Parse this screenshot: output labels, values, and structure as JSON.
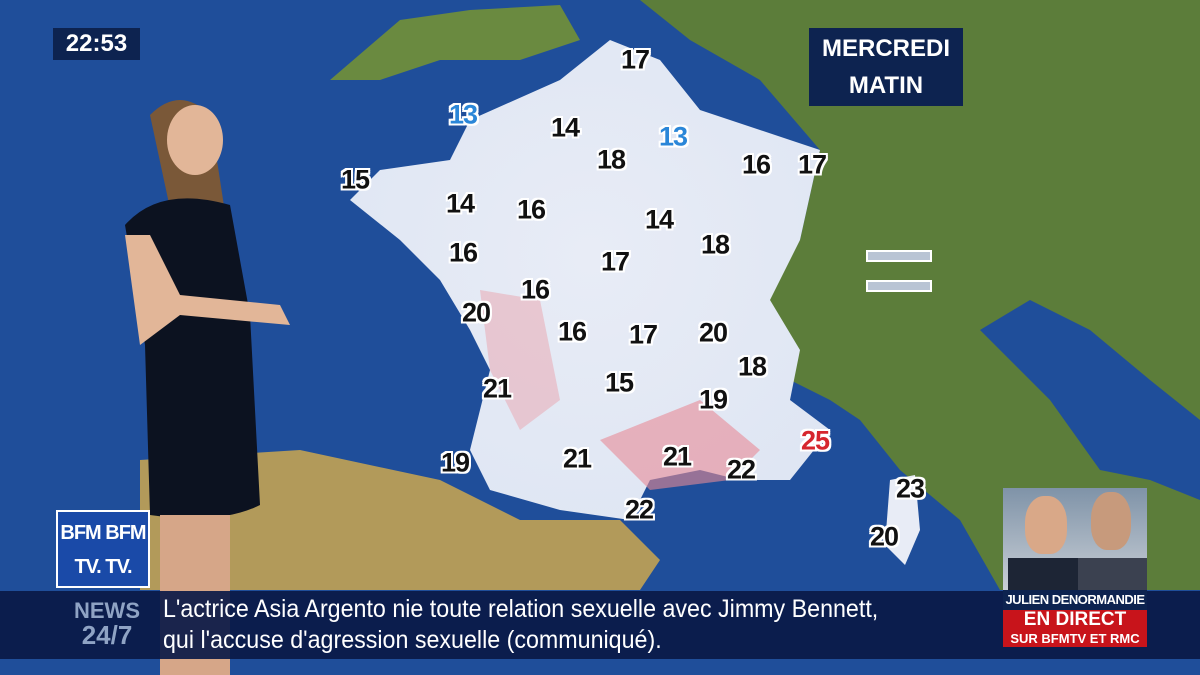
{
  "clock": "22:53",
  "period": {
    "day": "MERCREDI",
    "time": "MATIN"
  },
  "temperatures": [
    {
      "value": "17",
      "kind": "normal"
    },
    {
      "value": "13",
      "kind": "cold"
    },
    {
      "value": "14",
      "kind": "normal"
    },
    {
      "value": "13",
      "kind": "cold"
    },
    {
      "value": "18",
      "kind": "normal"
    },
    {
      "value": "16",
      "kind": "normal"
    },
    {
      "value": "17",
      "kind": "normal"
    },
    {
      "value": "15",
      "kind": "normal"
    },
    {
      "value": "14",
      "kind": "normal"
    },
    {
      "value": "16",
      "kind": "normal"
    },
    {
      "value": "14",
      "kind": "normal"
    },
    {
      "value": "18",
      "kind": "normal"
    },
    {
      "value": "16",
      "kind": "normal"
    },
    {
      "value": "17",
      "kind": "normal"
    },
    {
      "value": "16",
      "kind": "normal"
    },
    {
      "value": "20",
      "kind": "normal"
    },
    {
      "value": "16",
      "kind": "normal"
    },
    {
      "value": "17",
      "kind": "normal"
    },
    {
      "value": "20",
      "kind": "normal"
    },
    {
      "value": "18",
      "kind": "normal"
    },
    {
      "value": "21",
      "kind": "normal"
    },
    {
      "value": "15",
      "kind": "normal"
    },
    {
      "value": "19",
      "kind": "normal"
    },
    {
      "value": "19",
      "kind": "normal"
    },
    {
      "value": "21",
      "kind": "normal"
    },
    {
      "value": "21",
      "kind": "normal"
    },
    {
      "value": "22",
      "kind": "normal"
    },
    {
      "value": "25",
      "kind": "hot"
    },
    {
      "value": "22",
      "kind": "normal"
    },
    {
      "value": "23",
      "kind": "normal"
    },
    {
      "value": "20",
      "kind": "normal"
    }
  ],
  "colors": {
    "cold": "#2a86d8",
    "hot": "#d6262e",
    "sea": "#1f4e9a",
    "banner": "#0d2350",
    "live": "#c8141b"
  },
  "logo": {
    "line1": "BFM BFM",
    "line2": "TV. TV."
  },
  "ticker": {
    "label_top": "NEWS",
    "label_bottom": "24/7",
    "line1": "L'actrice Asia Argento nie toute relation sexuelle avec Jimmy Bennett,",
    "line2": "qui l'accuse d'agression sexuelle (communiqué)."
  },
  "promo": {
    "name": "JULIEN DENORMANDIE",
    "live": "EN DIRECT",
    "channels": "SUR BFMTV ET RMC"
  }
}
